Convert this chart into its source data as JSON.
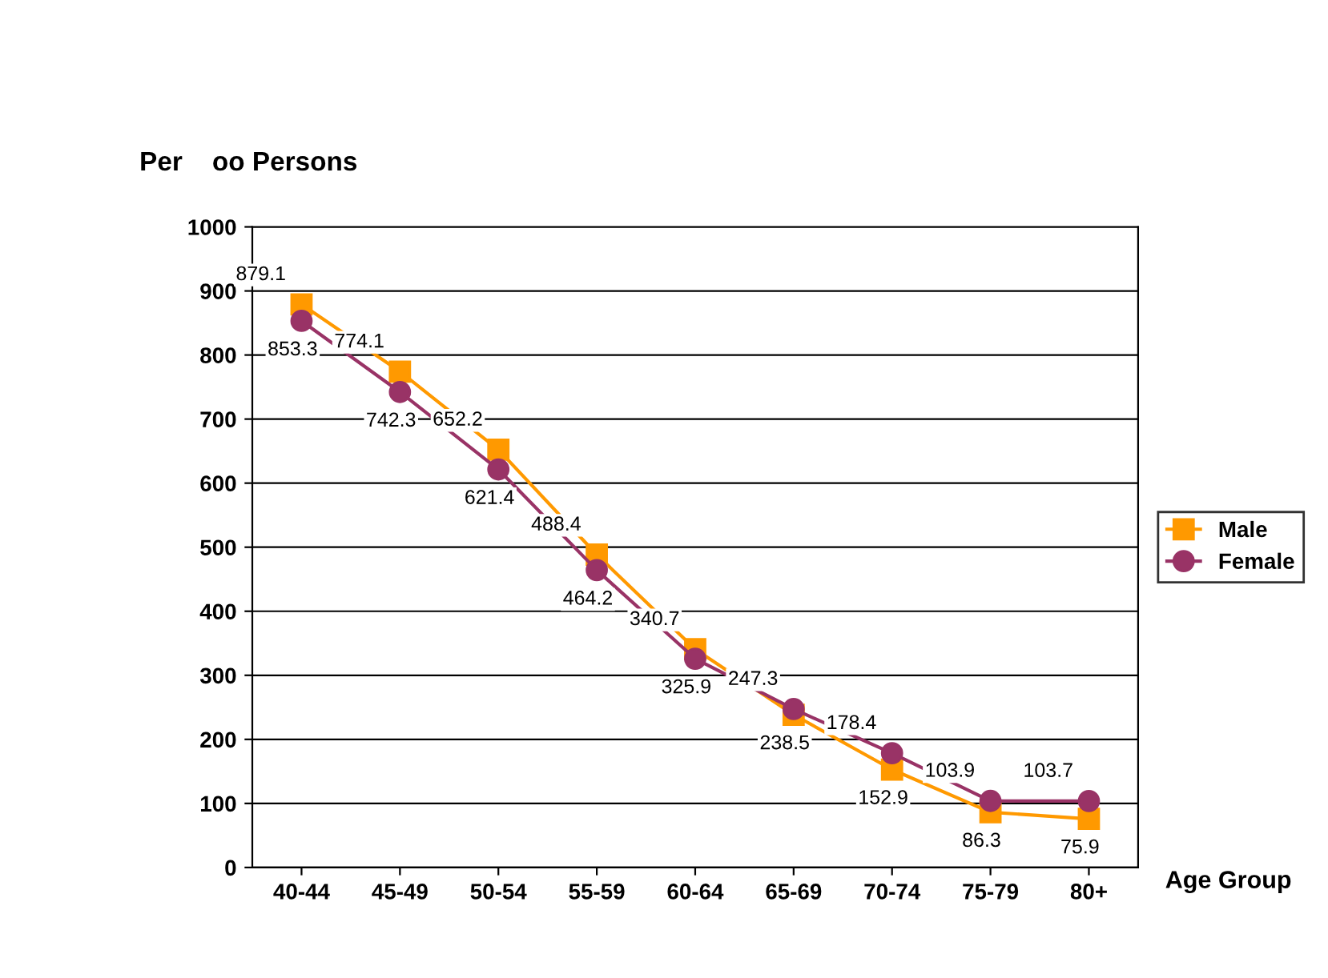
{
  "chart_data": {
    "type": "line",
    "ylabel": "Per    oo Persons",
    "xlabel": "Age Group",
    "categories": [
      "40-44",
      "45-49",
      "50-54",
      "55-59",
      "60-64",
      "65-69",
      "70-74",
      "75-79",
      "80+"
    ],
    "series": [
      {
        "name": "Male",
        "color": "#ff9900",
        "marker": "square",
        "values": [
          879.1,
          774.1,
          652.2,
          488.4,
          340.7,
          238.5,
          152.9,
          86.3,
          75.9
        ],
        "value_labels": [
          "879.1",
          "774.1",
          "652.2",
          "488.4",
          "340.7",
          "238.5",
          "152.9",
          "86.3",
          "75.9"
        ]
      },
      {
        "name": "Female",
        "color": "#993366",
        "marker": "circle",
        "values": [
          853.3,
          742.3,
          621.4,
          464.2,
          325.9,
          247.3,
          178.4,
          103.9,
          103.7
        ],
        "value_labels": [
          "853.3",
          "742.3",
          "621.4",
          "464.2",
          "325.9",
          "247.3",
          "178.4",
          "103.9",
          "103.7"
        ]
      }
    ],
    "ylim": [
      0,
      1000
    ],
    "yticks": [
      0,
      100,
      200,
      300,
      400,
      500,
      600,
      700,
      800,
      900,
      1000
    ],
    "grid": "y",
    "legend": "right",
    "line_style": "solid"
  }
}
